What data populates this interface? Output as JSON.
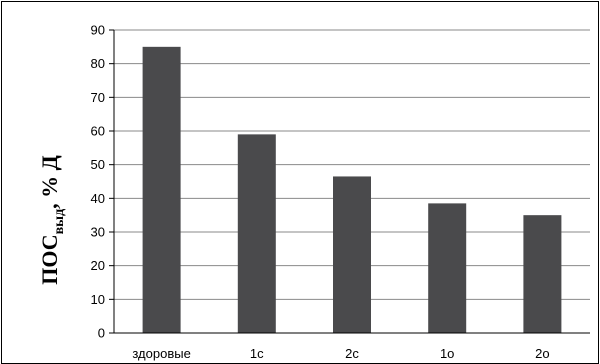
{
  "chart_data": {
    "type": "bar",
    "categories": [
      "здоровые",
      "1с",
      "2с",
      "1о",
      "2о"
    ],
    "values": [
      85,
      59,
      46.5,
      38.5,
      35
    ],
    "ylim": [
      0,
      90
    ],
    "yticks": [
      0,
      10,
      20,
      30,
      40,
      50,
      60,
      70,
      80,
      90
    ],
    "ylabel": {
      "main": "ПОС",
      "subscript": "выд",
      "suffix": ", % Д"
    },
    "grid": true,
    "bar_color": "#4a4a4c",
    "grid_color": "#8a8a8a",
    "legend": "none"
  }
}
